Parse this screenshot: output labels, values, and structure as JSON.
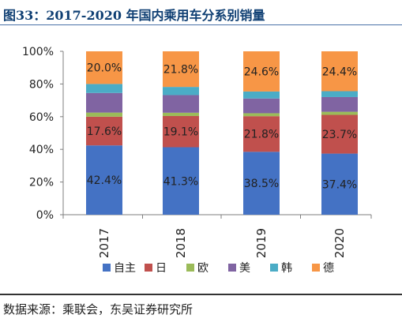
{
  "header": {
    "title": "图33：2017-2020 年国内乘用车分系别销量"
  },
  "footer": {
    "source": "数据来源：乘联会，东吴证券研究所"
  },
  "colors": {
    "自主": "#4472c4",
    "日": "#c0504d",
    "欧": "#9bbb59",
    "美": "#8064a2",
    "韩": "#4bacc6",
    "德": "#f79646"
  },
  "chart_data": {
    "type": "bar",
    "stacked": true,
    "percent": true,
    "categories": [
      "2017",
      "2018",
      "2019",
      "2020"
    ],
    "ylim": [
      0,
      100
    ],
    "yticks": [
      "0%",
      "20%",
      "40%",
      "60%",
      "80%",
      "100%"
    ],
    "legend_position": "bottom",
    "grid": false,
    "series": [
      {
        "name": "自主",
        "values": [
          42.4,
          41.3,
          38.5,
          37.4
        ],
        "labels": [
          "42.4%",
          "41.3%",
          "38.5%",
          "37.4%"
        ]
      },
      {
        "name": "日",
        "values": [
          17.6,
          19.1,
          21.8,
          23.7
        ],
        "labels": [
          "17.6%",
          "19.1%",
          "21.8%",
          "23.7%"
        ]
      },
      {
        "name": "欧",
        "values": [
          2.5,
          2.0,
          1.8,
          1.9
        ],
        "labels": [
          "",
          "",
          "",
          ""
        ]
      },
      {
        "name": "美",
        "values": [
          12.0,
          10.8,
          9.0,
          9.0
        ],
        "labels": [
          "",
          "",
          "",
          ""
        ]
      },
      {
        "name": "韩",
        "values": [
          5.5,
          5.0,
          4.3,
          3.6
        ],
        "labels": [
          "",
          "",
          "",
          ""
        ]
      },
      {
        "name": "德",
        "values": [
          20.0,
          21.8,
          24.6,
          24.4
        ],
        "labels": [
          "20.0%",
          "21.8%",
          "24.6%",
          "24.4%"
        ]
      }
    ]
  }
}
